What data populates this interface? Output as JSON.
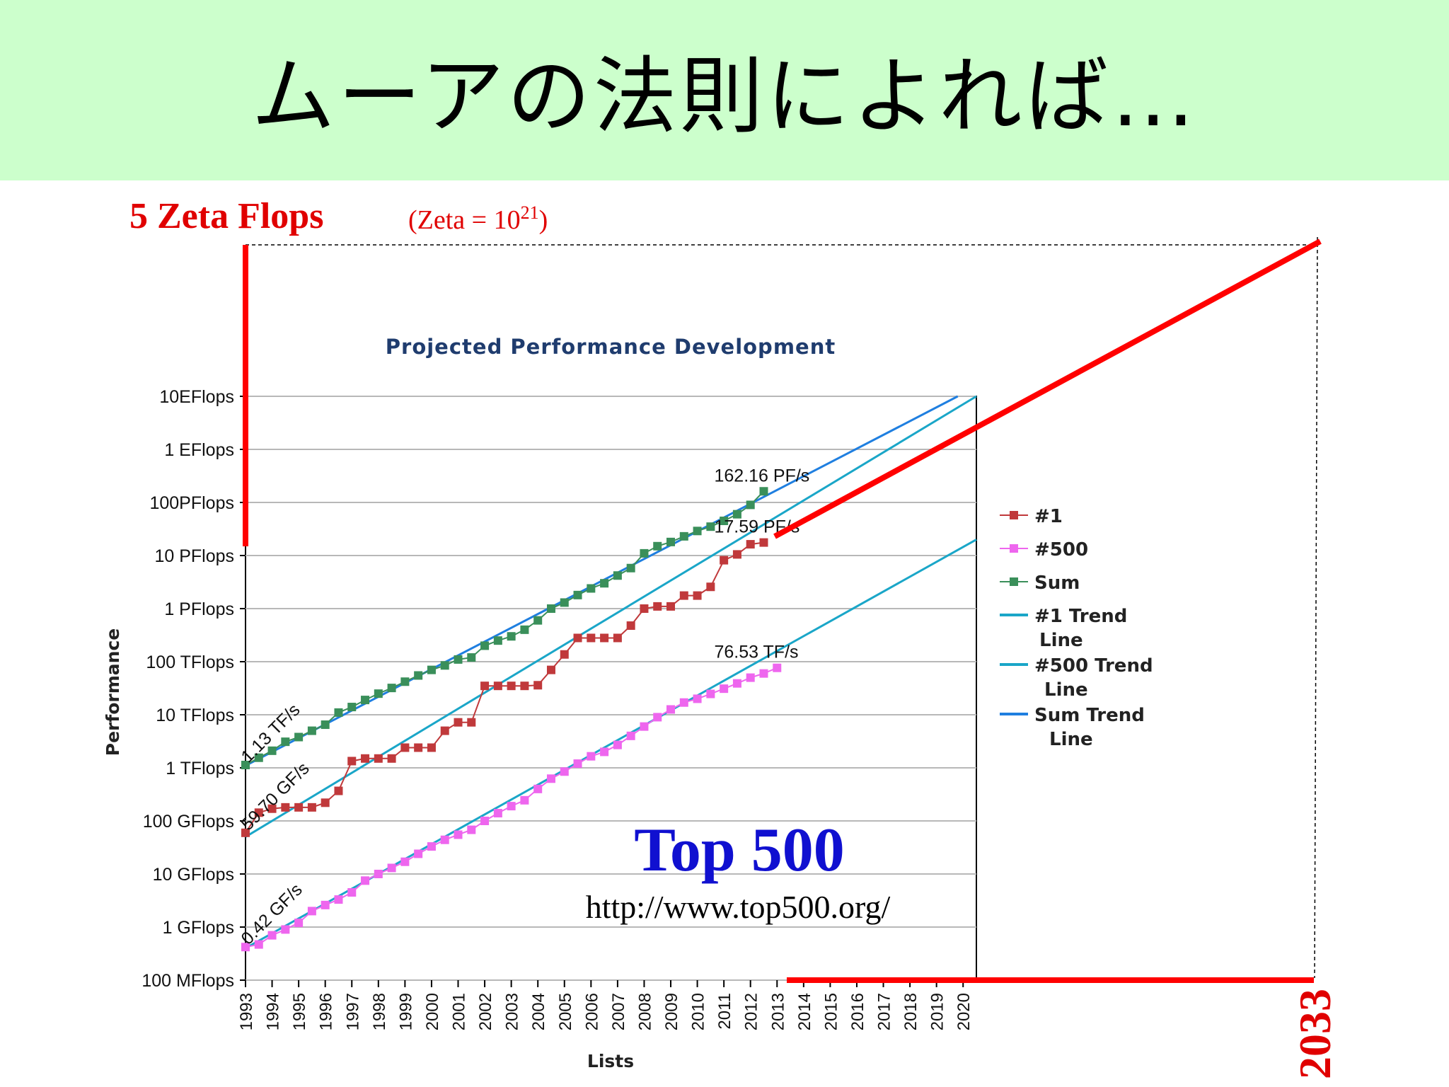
{
  "slide": {
    "title": "ムーアの法則によれば…",
    "zeta_label": "5 Zeta Flops",
    "zeta_note_prefix": "(Zeta = 10",
    "zeta_note_exp": "21",
    "zeta_note_suffix": ")",
    "year_label": "2033",
    "top500_label": "Top 500",
    "top500_url": "http://www.top500.org/"
  },
  "colors": {
    "title_bg": "#ccffcc",
    "num1": "#c0393b",
    "num500": "#ee66ee",
    "sum": "#3a8f5a",
    "num1_trend": "#1aa6c8",
    "num500_trend": "#1aa6c8",
    "sum_trend": "#1f7fe0",
    "extrapolation": "#ff0000",
    "top500_text": "#1010d0"
  },
  "chart_data": {
    "type": "line",
    "title": "Projected Performance Development",
    "xlabel": "Lists",
    "ylabel": "Performance",
    "y_scale": "log10",
    "y_unit": "GFlops",
    "ylim": [
      0.1,
      10000000000
    ],
    "y_ticks": [
      {
        "value": 0.1,
        "label": "100 MFlops"
      },
      {
        "value": 1,
        "label": "1 GFlops"
      },
      {
        "value": 10,
        "label": "10 GFlops"
      },
      {
        "value": 100,
        "label": "100 GFlops"
      },
      {
        "value": 1000,
        "label": "1 TFlops"
      },
      {
        "value": 10000,
        "label": "10 TFlops"
      },
      {
        "value": 100000,
        "label": "100 TFlops"
      },
      {
        "value": 1000000,
        "label": "1 PFlops"
      },
      {
        "value": 10000000,
        "label": "10 PFlops"
      },
      {
        "value": 100000000,
        "label": "100PFlops"
      },
      {
        "value": 1000000000,
        "label": "1 EFlops"
      },
      {
        "value": 10000000000,
        "label": "10EFlops"
      }
    ],
    "xlim": [
      1993,
      2020.5
    ],
    "x_ticks": [
      "1993",
      "1994",
      "1995",
      "1996",
      "1997",
      "1998",
      "1999",
      "2000",
      "2001",
      "2002",
      "2003",
      "2004",
      "2005",
      "2006",
      "2007",
      "2008",
      "2009",
      "2010",
      "2011",
      "2012",
      "2013",
      "2014",
      "2015",
      "2016",
      "2017",
      "2018",
      "2019",
      "2020"
    ],
    "grid": true,
    "legend_position": "right",
    "legend": [
      {
        "key": "num1",
        "label_lines": [
          "#1"
        ],
        "style": "marker-line"
      },
      {
        "key": "num500",
        "label_lines": [
          "#500"
        ],
        "style": "marker-line"
      },
      {
        "key": "sum",
        "label_lines": [
          "Sum"
        ],
        "style": "marker-line"
      },
      {
        "key": "num1_trend",
        "label_lines": [
          "#1 Trend",
          "Line"
        ],
        "style": "line"
      },
      {
        "key": "num500_trend",
        "label_lines": [
          "#500 Trend",
          "Line"
        ],
        "style": "line"
      },
      {
        "key": "sum_trend",
        "label_lines": [
          "Sum Trend",
          "Line"
        ],
        "style": "line"
      }
    ],
    "series": [
      {
        "key": "sum",
        "name": "Sum",
        "points": [
          [
            1993.0,
            1130
          ],
          [
            1993.5,
            1550
          ],
          [
            1994.0,
            2100
          ],
          [
            1994.5,
            3100
          ],
          [
            1995.0,
            3800
          ],
          [
            1995.5,
            5000
          ],
          [
            1996.0,
            6500
          ],
          [
            1996.5,
            11000
          ],
          [
            1997.0,
            14000
          ],
          [
            1997.5,
            19000
          ],
          [
            1998.0,
            25000
          ],
          [
            1998.5,
            32000
          ],
          [
            1999.0,
            42000
          ],
          [
            1999.5,
            55000
          ],
          [
            2000.0,
            70000
          ],
          [
            2000.5,
            85000
          ],
          [
            2001.0,
            110000
          ],
          [
            2001.5,
            120000
          ],
          [
            2002.0,
            200000
          ],
          [
            2002.5,
            250000
          ],
          [
            2003.0,
            300000
          ],
          [
            2003.5,
            400000
          ],
          [
            2004.0,
            600000
          ],
          [
            2004.5,
            1000000
          ],
          [
            2005.0,
            1300000
          ],
          [
            2005.5,
            1800000
          ],
          [
            2006.0,
            2400000
          ],
          [
            2006.5,
            3000000
          ],
          [
            2007.0,
            4200000
          ],
          [
            2007.5,
            5800000
          ],
          [
            2008.0,
            11000000
          ],
          [
            2008.5,
            15000000
          ],
          [
            2009.0,
            18000000
          ],
          [
            2009.5,
            23000000
          ],
          [
            2010.0,
            29000000
          ],
          [
            2010.5,
            35000000
          ],
          [
            2011.0,
            45000000
          ],
          [
            2011.5,
            60000000
          ],
          [
            2012.0,
            90000000
          ],
          [
            2012.5,
            162160000
          ]
        ]
      },
      {
        "key": "num1",
        "name": "#1",
        "points": [
          [
            1993.0,
            59.7
          ],
          [
            1993.5,
            143
          ],
          [
            1994.0,
            170
          ],
          [
            1994.5,
            180
          ],
          [
            1995.0,
            180
          ],
          [
            1995.5,
            180
          ],
          [
            1996.0,
            220
          ],
          [
            1996.5,
            368
          ],
          [
            1997.0,
            1340
          ],
          [
            1997.5,
            1500
          ],
          [
            1998.0,
            1500
          ],
          [
            1998.5,
            1500
          ],
          [
            1999.0,
            2400
          ],
          [
            1999.5,
            2400
          ],
          [
            2000.0,
            2400
          ],
          [
            2000.5,
            5000
          ],
          [
            2001.0,
            7200
          ],
          [
            2001.5,
            7200
          ],
          [
            2002.0,
            35000
          ],
          [
            2002.5,
            35000
          ],
          [
            2003.0,
            35000
          ],
          [
            2003.5,
            35000
          ],
          [
            2004.0,
            36000
          ],
          [
            2004.5,
            70000
          ],
          [
            2005.0,
            137000
          ],
          [
            2005.5,
            280000
          ],
          [
            2006.0,
            280000
          ],
          [
            2006.5,
            280000
          ],
          [
            2007.0,
            280000
          ],
          [
            2007.5,
            478000
          ],
          [
            2008.0,
            1000000
          ],
          [
            2008.5,
            1100000
          ],
          [
            2009.0,
            1100000
          ],
          [
            2009.5,
            1760000
          ],
          [
            2010.0,
            1760000
          ],
          [
            2010.5,
            2570000
          ],
          [
            2011.0,
            8160000
          ],
          [
            2011.5,
            10500000
          ],
          [
            2012.0,
            16300000
          ],
          [
            2012.5,
            17590000
          ]
        ]
      },
      {
        "key": "num500",
        "name": "#500",
        "points": [
          [
            1993.0,
            0.42
          ],
          [
            1993.5,
            0.47
          ],
          [
            1994.0,
            0.7
          ],
          [
            1994.5,
            0.9
          ],
          [
            1995.0,
            1.2
          ],
          [
            1995.5,
            2.0
          ],
          [
            1996.0,
            2.6
          ],
          [
            1996.5,
            3.3
          ],
          [
            1997.0,
            4.5
          ],
          [
            1997.5,
            7.5
          ],
          [
            1998.0,
            10
          ],
          [
            1998.5,
            13
          ],
          [
            1999.0,
            17
          ],
          [
            1999.5,
            24
          ],
          [
            2000.0,
            33
          ],
          [
            2000.5,
            44
          ],
          [
            2001.0,
            55
          ],
          [
            2001.5,
            68
          ],
          [
            2002.0,
            100
          ],
          [
            2002.5,
            140
          ],
          [
            2003.0,
            190
          ],
          [
            2003.5,
            245
          ],
          [
            2004.0,
            400
          ],
          [
            2004.5,
            625
          ],
          [
            2005.0,
            850
          ],
          [
            2005.5,
            1200
          ],
          [
            2006.0,
            1650
          ],
          [
            2006.5,
            2000
          ],
          [
            2007.0,
            2700
          ],
          [
            2007.5,
            4000
          ],
          [
            2008.0,
            6000
          ],
          [
            2008.5,
            9000
          ],
          [
            2009.0,
            12600
          ],
          [
            2009.5,
            17000
          ],
          [
            2010.0,
            20000
          ],
          [
            2010.5,
            24700
          ],
          [
            2011.0,
            31000
          ],
          [
            2011.5,
            39000
          ],
          [
            2012.0,
            50000
          ],
          [
            2012.5,
            60000
          ],
          [
            2013.0,
            76530
          ]
        ]
      }
    ],
    "trend_lines": [
      {
        "key": "sum_trend",
        "name": "Sum Trend Line",
        "from": [
          1993,
          1100
        ],
        "to": [
          2019.8,
          10000000000
        ]
      },
      {
        "key": "num1_trend",
        "name": "#1 Trend Line",
        "from": [
          1993,
          50
        ],
        "to": [
          2020.5,
          10000000000
        ]
      },
      {
        "key": "num500_trend",
        "name": "#500 Trend Line",
        "from": [
          1993,
          0.4
        ],
        "to": [
          2020.5,
          20000000
        ]
      }
    ],
    "annotations": [
      {
        "text": "162.16 PF/s",
        "x": 2012.5,
        "y": 162160000
      },
      {
        "text": "17.59 PF/s",
        "x": 2012.5,
        "y": 17590000
      },
      {
        "text": "76.53 TF/s",
        "x": 2012.5,
        "y": 76530
      },
      {
        "text": "1.13 TF/s",
        "x": 1993.0,
        "y": 1130,
        "rotated": true
      },
      {
        "text": "59.70 GF/s",
        "x": 1993.0,
        "y": 59.7,
        "rotated": true
      },
      {
        "text": "0.42 GF/s",
        "x": 1993.0,
        "y": 0.42,
        "rotated": true
      }
    ]
  }
}
